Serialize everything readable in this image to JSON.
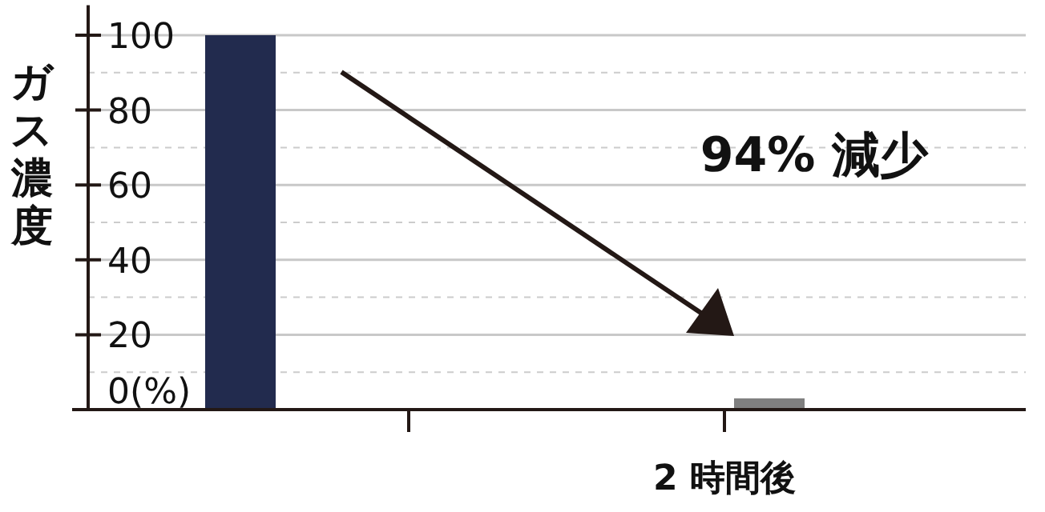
{
  "chart_data": {
    "type": "bar",
    "ylabel": "ガス濃度",
    "categories": [
      null,
      "2 時間後"
    ],
    "colors": [
      "#222b4e",
      "#808080"
    ],
    "values": [
      100,
      3
    ],
    "ylim": [
      0,
      108
    ],
    "yticks": [
      {
        "value": 0,
        "label": "0(%)"
      },
      20,
      40,
      60,
      80,
      100
    ],
    "grid": "y",
    "annotations": [
      "94% 減少"
    ]
  }
}
